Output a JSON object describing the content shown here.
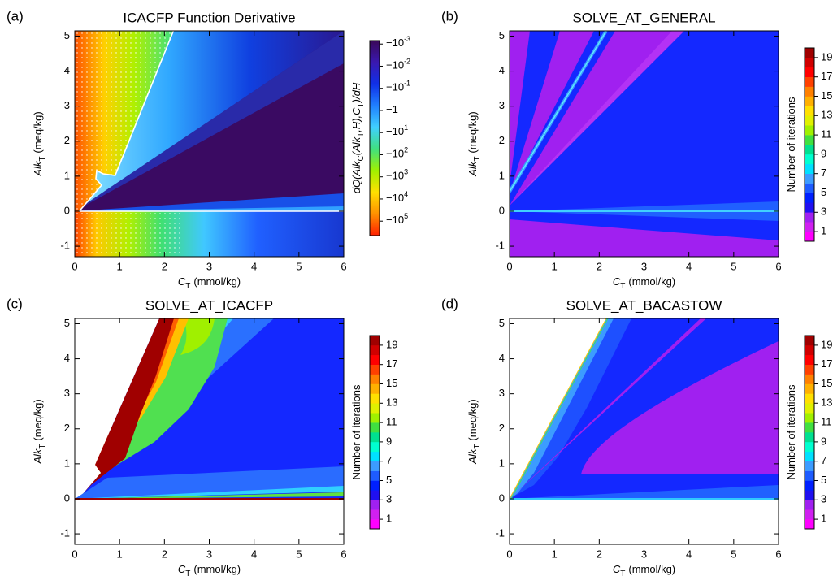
{
  "chart_data": [
    {
      "type": "contour",
      "panel_label": "(a)",
      "title": "ICACFP Function Derivative",
      "xlabel": [
        {
          "text": "C",
          "italic": true
        },
        {
          "text": "T",
          "sub": true
        },
        {
          "text": "(mmol/kg)"
        }
      ],
      "ylabel": [
        {
          "text": "Alk",
          "italic": true
        },
        {
          "text": "T",
          "sub": true
        },
        {
          "text": "(meq/kg)"
        }
      ],
      "xlim": [
        0,
        6
      ],
      "ylim": [
        -1.3,
        5.15
      ],
      "xticks": [
        0,
        1,
        2,
        3,
        4,
        5,
        6
      ],
      "yticks": [
        -1,
        0,
        1,
        2,
        3,
        4,
        5
      ],
      "colorbar": {
        "log": true,
        "lim": [
          -0.0007,
          -450000
        ],
        "label": [
          {
            "text": "dQ(Alk",
            "italic": true
          },
          {
            "text": "C",
            "sub": true
          },
          {
            "text": "(Alk",
            "italic": true
          },
          {
            "text": "T",
            "sub": true
          },
          {
            "text": ",H),C",
            "italic": true
          },
          {
            "text": "T",
            "sub": true
          },
          {
            "text": ")/dH",
            "italic": true
          }
        ],
        "ticks": [
          {
            "value": -0.001,
            "label": "−10",
            "exponent": "-3"
          },
          {
            "value": -0.01,
            "label": "−10",
            "exponent": "-2"
          },
          {
            "value": -0.1,
            "label": "−10",
            "exponent": "-1"
          },
          {
            "value": -1,
            "label": "−1"
          },
          {
            "value": -10,
            "label": "−10",
            "exponent": "1"
          },
          {
            "value": -100,
            "label": "−10",
            "exponent": "2"
          },
          {
            "value": -1000,
            "label": "−10",
            "exponent": "3"
          },
          {
            "value": -10000,
            "label": "−10",
            "exponent": "4"
          },
          {
            "value": -100000,
            "label": "−10",
            "exponent": "5"
          }
        ],
        "colors": [
          "#3a0858",
          "#3a18b0",
          "#1030e8",
          "#2080ff",
          "#40d0ff",
          "#40e080",
          "#a0f000",
          "#ffe000",
          "#ff9000",
          "#ff2000"
        ]
      }
    },
    {
      "type": "contour",
      "panel_label": "(b)",
      "title": "SOLVE_AT_GENERAL",
      "xlabel": [
        {
          "text": "C",
          "italic": true
        },
        {
          "text": "T",
          "sub": true
        },
        {
          "text": "(mmol/kg)"
        }
      ],
      "ylabel": [
        {
          "text": "Alk",
          "italic": true
        },
        {
          "text": "T",
          "sub": true
        },
        {
          "text": "(meq/kg)"
        }
      ],
      "xlim": [
        0,
        6
      ],
      "ylim": [
        -1.3,
        5.15
      ],
      "xticks": [
        0,
        1,
        2,
        3,
        4,
        5,
        6
      ],
      "yticks": [
        -1,
        0,
        1,
        2,
        3,
        4,
        5
      ],
      "colorbar": {
        "log": false,
        "lim": [
          0,
          20
        ],
        "label": [
          {
            "text": "Number of iterations"
          }
        ],
        "ticks": [
          1,
          3,
          5,
          7,
          9,
          11,
          13,
          15,
          17,
          19
        ],
        "colors": [
          "#ff00ff",
          "#d020f0",
          "#a020f0",
          "#2010f0",
          "#0020ff",
          "#1e5cff",
          "#3c9cff",
          "#00e0ff",
          "#00ffd0",
          "#00e090",
          "#40e040",
          "#a0f000",
          "#e0f000",
          "#ffe000",
          "#ffb000",
          "#ff8000",
          "#ff4000",
          "#ff0000",
          "#d00000",
          "#a00000"
        ]
      }
    },
    {
      "type": "contour",
      "panel_label": "(c)",
      "title": "SOLVE_AT_ICACFP",
      "xlabel": [
        {
          "text": "C",
          "italic": true
        },
        {
          "text": "T",
          "sub": true
        },
        {
          "text": "(mmol/kg)"
        }
      ],
      "ylabel": [
        {
          "text": "Alk",
          "italic": true
        },
        {
          "text": "T",
          "sub": true
        },
        {
          "text": "(meq/kg)"
        }
      ],
      "xlim": [
        0,
        6
      ],
      "ylim": [
        -1.3,
        5.15
      ],
      "xticks": [
        0,
        1,
        2,
        3,
        4,
        5,
        6
      ],
      "yticks": [
        -1,
        0,
        1,
        2,
        3,
        4,
        5
      ],
      "colorbar": {
        "log": false,
        "lim": [
          0,
          20
        ],
        "label": [
          {
            "text": "Number of iterations"
          }
        ],
        "ticks": [
          1,
          3,
          5,
          7,
          9,
          11,
          13,
          15,
          17,
          19
        ],
        "colors": [
          "#ff00ff",
          "#d020f0",
          "#a020f0",
          "#2010f0",
          "#0020ff",
          "#1e5cff",
          "#3c9cff",
          "#00e0ff",
          "#00ffd0",
          "#00e090",
          "#40e040",
          "#a0f000",
          "#e0f000",
          "#ffe000",
          "#ffb000",
          "#ff8000",
          "#ff4000",
          "#ff0000",
          "#d00000",
          "#a00000"
        ]
      }
    },
    {
      "type": "contour",
      "panel_label": "(d)",
      "title": "SOLVE_AT_BACASTOW",
      "xlabel": [
        {
          "text": "C",
          "italic": true
        },
        {
          "text": "T",
          "sub": true
        },
        {
          "text": "(mmol/kg)"
        }
      ],
      "ylabel": [
        {
          "text": "Alk",
          "italic": true
        },
        {
          "text": "T",
          "sub": true
        },
        {
          "text": "(meq/kg)"
        }
      ],
      "xlim": [
        0,
        6
      ],
      "ylim": [
        -1.3,
        5.15
      ],
      "xticks": [
        0,
        1,
        2,
        3,
        4,
        5,
        6
      ],
      "yticks": [
        -1,
        0,
        1,
        2,
        3,
        4,
        5
      ],
      "colorbar": {
        "log": false,
        "lim": [
          0,
          20
        ],
        "label": [
          {
            "text": "Number of iterations"
          }
        ],
        "ticks": [
          1,
          3,
          5,
          7,
          9,
          11,
          13,
          15,
          17,
          19
        ],
        "colors": [
          "#ff00ff",
          "#d020f0",
          "#a020f0",
          "#2010f0",
          "#0020ff",
          "#1e5cff",
          "#3c9cff",
          "#00e0ff",
          "#00ffd0",
          "#00e090",
          "#40e040",
          "#a0f000",
          "#e0f000",
          "#ffe000",
          "#ffb000",
          "#ff8000",
          "#ff4000",
          "#ff0000",
          "#d00000",
          "#a00000"
        ]
      }
    }
  ]
}
